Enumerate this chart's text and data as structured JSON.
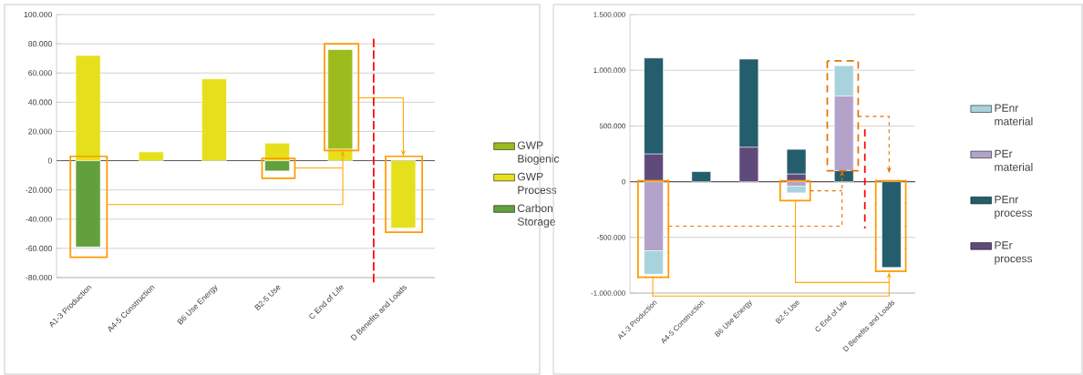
{
  "chart_data": [
    {
      "type": "bar",
      "stacked": true,
      "categories": [
        "A1-3 Production",
        "A4-5 Construction",
        "B6 Use Energy",
        "B2-5 Use",
        "C End of Life",
        "D Benefits and Loads"
      ],
      "series": [
        {
          "name": "Carbon Storage",
          "color": "#62a03e",
          "values": [
            -59000,
            null,
            null,
            -7000,
            null,
            null
          ]
        },
        {
          "name": "GWP Process",
          "color": "#e6e01c",
          "values": [
            72000,
            6000,
            56000,
            12000,
            8000,
            -46000
          ]
        },
        {
          "name": "GWP Biogenic",
          "color": "#9cbb1c",
          "values": [
            null,
            null,
            null,
            null,
            68000,
            null
          ]
        }
      ],
      "ylim": [
        -80000,
        100000
      ],
      "yticks": [
        {
          "value": -80000,
          "label": "-80.000"
        },
        {
          "value": -60000,
          "label": "-60.000"
        },
        {
          "value": -40000,
          "label": "-40.000"
        },
        {
          "value": -20000,
          "label": "-20.000"
        },
        0,
        {
          "value": 20000,
          "label": "20.000"
        },
        {
          "value": 40000,
          "label": "40.000"
        },
        {
          "value": 60000,
          "label": "60.000"
        },
        {
          "value": 80000,
          "label": "80.000"
        },
        {
          "value": 100000,
          "label": "100.000"
        }
      ],
      "grid": "y",
      "legend": "right"
    },
    {
      "type": "bar",
      "stacked": true,
      "categories": [
        "A1-3 Production",
        "A4-5 Construction",
        "B6 Use Energy",
        "B2-5 Use",
        "C End of Life",
        "D Benefits and Loads"
      ],
      "series": [
        {
          "name": "PEr process",
          "color": "#5e4a7b",
          "values": [
            250000,
            null,
            310000,
            70000,
            null,
            null
          ]
        },
        {
          "name": "PEnr process",
          "color": "#245d6b",
          "values": [
            860000,
            90000,
            790000,
            220000,
            100000,
            -770000
          ]
        },
        {
          "name": "PEr material",
          "color": "#b3a2c9",
          "values": [
            -620000,
            null,
            null,
            -40000,
            670000,
            null
          ]
        },
        {
          "name": "PEnr material",
          "color": "#a8d3dc",
          "values": [
            -210000,
            null,
            null,
            -60000,
            270000,
            null
          ]
        }
      ],
      "ylim": [
        -1000000,
        1500000
      ],
      "yticks": [
        {
          "value": -1000000,
          "label": "-1.000.000"
        },
        {
          "value": -500000,
          "label": "-500.000"
        },
        0,
        {
          "value": 500000,
          "label": "500.000"
        },
        {
          "value": 1000000,
          "label": "1.000.000"
        },
        {
          "value": 1500000,
          "label": "1.500.000"
        }
      ],
      "grid": "y",
      "legend": "right"
    }
  ]
}
